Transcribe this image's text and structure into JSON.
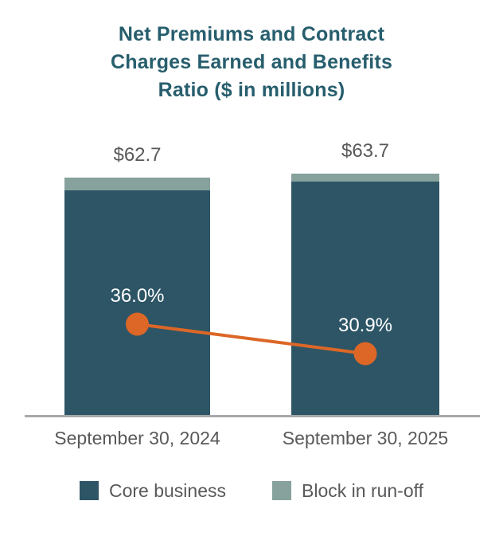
{
  "title": "Net Premiums and Contract\nCharges Earned and Benefits\nRatio ($ in millions)",
  "colors": {
    "title_text": "#275e6d",
    "core_business": "#2d5566",
    "block_run_off": "#87a19c",
    "ratio_line": "#dc6727",
    "gray_text": "#58595b",
    "axis_line": "#a7a9ac",
    "pct_text": "#ffffff"
  },
  "chart_data": {
    "type": "bar",
    "stacked": true,
    "title": "Net Premiums and Contract\nCharges Earned and Benefits\nRatio ($ in millions)",
    "categories": [
      "September 30, 2024",
      "September 30, 2025"
    ],
    "series": [
      {
        "name": "Core business",
        "color": "#2d5566",
        "values": [
          59.4,
          61.6
        ]
      },
      {
        "name": "Block in run-off",
        "color": "#87a19c",
        "values": [
          3.3,
          2.1
        ]
      }
    ],
    "totals": [
      62.7,
      63.7
    ],
    "total_labels": [
      "$62.7",
      "$63.7"
    ],
    "line_series": {
      "name": "Benefits ratio",
      "color": "#dc6727",
      "values": [
        36.0,
        30.9
      ],
      "labels": [
        "36.0%",
        "30.9%"
      ]
    },
    "legend": [
      {
        "label": "Core business",
        "color": "#2d5566"
      },
      {
        "label": "Block in run-off",
        "color": "#87a19c"
      }
    ],
    "legend_position": "bottom",
    "grid": false,
    "value_axis_visible": false
  }
}
